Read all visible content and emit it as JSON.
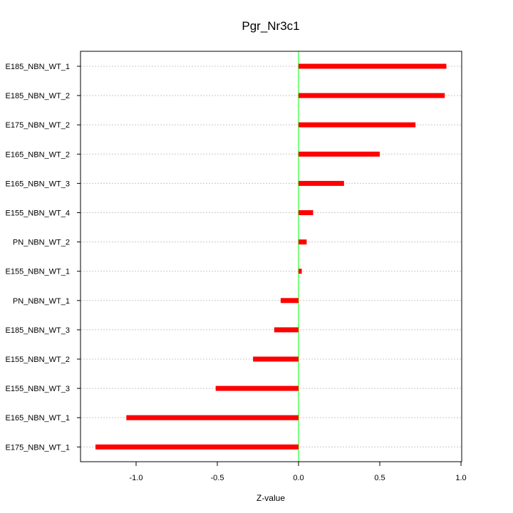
{
  "chart_data": {
    "type": "bar",
    "orientation": "horizontal",
    "title": "Pgr_Nr3c1",
    "xlabel": "Z-value",
    "ylabel": "",
    "xlim": [
      -1.25,
      1.0
    ],
    "xticks": [
      -1.0,
      -0.5,
      0.0,
      0.5,
      1.0
    ],
    "xtick_labels": [
      "-1.0",
      "-0.5",
      "0.0",
      "0.5",
      "1.0"
    ],
    "grid": true,
    "reference_line_x": 0.0,
    "categories": [
      "E185_NBN_WT_1",
      "E185_NBN_WT_2",
      "E175_NBN_WT_2",
      "E165_NBN_WT_2",
      "E165_NBN_WT_3",
      "E155_NBN_WT_4",
      "PN_NBN_WT_2",
      "E155_NBN_WT_1",
      "PN_NBN_WT_1",
      "E185_NBN_WT_3",
      "E155_NBN_WT_2",
      "E155_NBN_WT_3",
      "E165_NBN_WT_1",
      "E175_NBN_WT_1"
    ],
    "values": [
      0.91,
      0.9,
      0.72,
      0.5,
      0.28,
      0.09,
      0.05,
      0.02,
      -0.11,
      -0.15,
      -0.28,
      -0.51,
      -1.06,
      -1.25
    ],
    "bar_color": "#ff0000",
    "reference_line_color": "#00ff00",
    "grid_color": "#c8c8c8"
  }
}
